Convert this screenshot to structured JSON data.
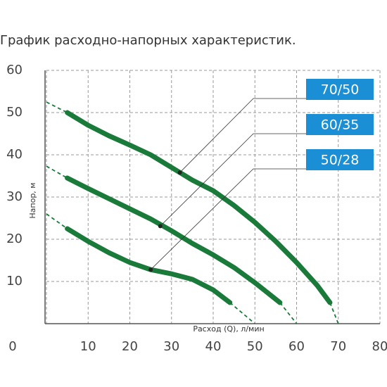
{
  "chart_data": {
    "type": "line",
    "title": "График расходно-напорных характеристик.",
    "x_label": "Расход (Q), л/мин",
    "y_label": "Напор, м",
    "xlim": [
      0,
      80
    ],
    "ylim": [
      0,
      60
    ],
    "xticks": [
      0,
      10,
      20,
      30,
      40,
      50,
      60,
      70,
      80
    ],
    "yticks": [
      10,
      20,
      30,
      40,
      50,
      60
    ],
    "grid": true,
    "series": [
      {
        "name": "70/50",
        "color": "#1a7a3a",
        "x": [
          5,
          10,
          15,
          20,
          25,
          30,
          35,
          40,
          45,
          50,
          55,
          60,
          65,
          68
        ],
        "values": [
          50,
          47,
          44.5,
          42.3,
          40,
          37,
          34,
          31.5,
          28,
          24,
          19.5,
          14.5,
          9,
          5
        ],
        "dashed_x": [
          0,
          5,
          null,
          68,
          70
        ],
        "dashed_values": [
          52.5,
          50,
          null,
          5,
          0
        ],
        "marker": [
          32,
          35.8
        ]
      },
      {
        "name": "60/35",
        "color": "#1a7a3a",
        "x": [
          5,
          10,
          15,
          20,
          25,
          30,
          35,
          40,
          45,
          50,
          56
        ],
        "values": [
          34.5,
          32,
          29.6,
          27.2,
          24.8,
          22,
          19,
          16.3,
          13.3,
          9.7,
          5
        ],
        "dashed_x": [
          0,
          5,
          null,
          56,
          60
        ],
        "dashed_values": [
          37.3,
          34.5,
          null,
          5,
          0
        ],
        "marker": [
          27.3,
          23.1
        ]
      },
      {
        "name": "50/28",
        "color": "#1a7a3a",
        "x": [
          5,
          10,
          15,
          20,
          25,
          30,
          35,
          40,
          44
        ],
        "values": [
          22.5,
          19.5,
          16.8,
          14.5,
          12.8,
          11.8,
          10.5,
          8,
          5
        ],
        "dashed_x": [
          0,
          5,
          null,
          44,
          50
        ],
        "dashed_values": [
          26,
          22.5,
          null,
          5,
          0
        ],
        "marker": [
          25,
          12.8
        ]
      }
    ],
    "label_color": "#1a8fd6"
  }
}
